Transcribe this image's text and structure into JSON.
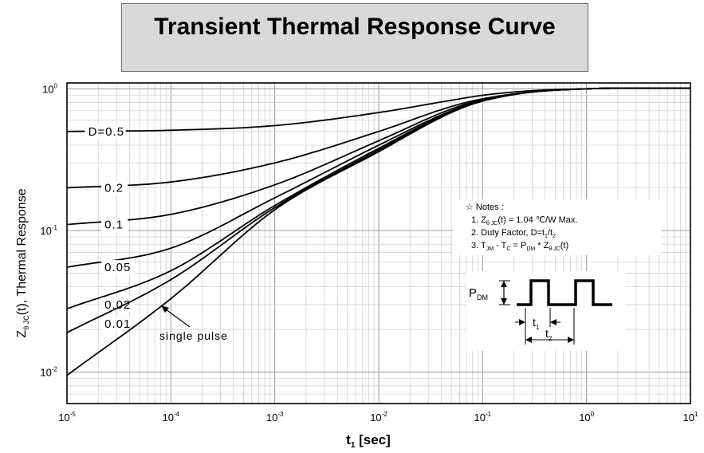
{
  "chart_data": {
    "type": "line",
    "title": "Transient Thermal Response Curve",
    "xlabel": "t [sec]",
    "xlabel_parts": {
      "main": "t",
      "sub": "1",
      "rest": " [sec]"
    },
    "ylabel": "Z θJC(t), Thermal Response",
    "ylabel_parts": {
      "main": "Z",
      "sub": "θ JC",
      "rest": "(t), Thermal Response"
    },
    "x_scale": "log",
    "y_scale": "log",
    "xlim": [
      1e-05,
      10
    ],
    "ylim": [
      0.006,
      1.1
    ],
    "grid": true,
    "x_ticks": [
      {
        "value": 1e-05,
        "base": "10",
        "exp": "-5"
      },
      {
        "value": 0.0001,
        "base": "10",
        "exp": "-4"
      },
      {
        "value": 0.001,
        "base": "10",
        "exp": "-3"
      },
      {
        "value": 0.01,
        "base": "10",
        "exp": "-2"
      },
      {
        "value": 0.1,
        "base": "10",
        "exp": "-1"
      },
      {
        "value": 1,
        "base": "10",
        "exp": "0"
      },
      {
        "value": 10,
        "base": "10",
        "exp": "1"
      }
    ],
    "y_ticks": [
      {
        "value": 0.01,
        "base": "10",
        "exp": "-2"
      },
      {
        "value": 0.1,
        "base": "10",
        "exp": "-1"
      },
      {
        "value": 1,
        "base": "10",
        "exp": "0"
      }
    ],
    "series": [
      {
        "name": "D=0.5",
        "label_x": 1.6e-05,
        "label_y": 0.5,
        "x": [
          1e-05,
          0.0001,
          0.001,
          0.01,
          0.05,
          0.1,
          0.3,
          1,
          2,
          10
        ],
        "y": [
          0.5,
          0.51,
          0.55,
          0.68,
          0.83,
          0.9,
          0.97,
          1.0,
          1.01,
          1.01
        ]
      },
      {
        "name": "0.2",
        "label_x": 2.3e-05,
        "label_y": 0.2,
        "x": [
          1e-05,
          0.0001,
          0.001,
          0.01,
          0.05,
          0.1,
          0.3,
          1,
          2,
          10
        ],
        "y": [
          0.2,
          0.22,
          0.3,
          0.5,
          0.75,
          0.85,
          0.95,
          1.0,
          1.01,
          1.01
        ]
      },
      {
        "name": "0.1",
        "label_x": 2.3e-05,
        "label_y": 0.11,
        "x": [
          1e-05,
          0.0001,
          0.001,
          0.01,
          0.05,
          0.1,
          0.3,
          1,
          2,
          10
        ],
        "y": [
          0.11,
          0.13,
          0.21,
          0.43,
          0.72,
          0.84,
          0.95,
          1.0,
          1.01,
          1.01
        ]
      },
      {
        "name": "0.05",
        "label_x": 2.3e-05,
        "label_y": 0.055,
        "x": [
          1e-05,
          0.0001,
          0.001,
          0.01,
          0.05,
          0.1,
          0.3,
          1,
          2,
          10
        ],
        "y": [
          0.055,
          0.075,
          0.17,
          0.4,
          0.7,
          0.83,
          0.95,
          1.0,
          1.01,
          1.01
        ]
      },
      {
        "name": "0.02",
        "label_x": 2.3e-05,
        "label_y": 0.03,
        "x": [
          1e-05,
          0.0001,
          0.001,
          0.01,
          0.05,
          0.1,
          0.3,
          1,
          2,
          10
        ],
        "y": [
          0.028,
          0.052,
          0.15,
          0.38,
          0.69,
          0.82,
          0.95,
          1.0,
          1.01,
          1.01
        ]
      },
      {
        "name": "0.01",
        "label_x": 2.3e-05,
        "label_y": 0.022,
        "x": [
          1e-05,
          0.0001,
          0.001,
          0.01,
          0.05,
          0.1,
          0.3,
          1,
          2,
          10
        ],
        "y": [
          0.019,
          0.045,
          0.145,
          0.37,
          0.69,
          0.82,
          0.95,
          1.0,
          1.01,
          1.01
        ]
      },
      {
        "name": "single pulse",
        "label_x": 0.0003,
        "label_y": 0.014,
        "x": [
          1e-05,
          0.0001,
          0.001,
          0.01,
          0.05,
          0.1,
          0.3,
          1,
          2,
          10
        ],
        "y": [
          0.0095,
          0.033,
          0.14,
          0.36,
          0.68,
          0.82,
          0.95,
          1.0,
          1.01,
          1.01
        ]
      }
    ],
    "notes": {
      "header": "☆ Notes :",
      "line1": {
        "pre": "1. Z",
        "sub": "θ JC",
        "post": "(t) = 1.04 ℃/W Max."
      },
      "line2": {
        "pre": "2. Duty Factor, D=t",
        "sub1": "1",
        "mid": "/t",
        "sub2": "2"
      },
      "line3": {
        "pre": "3. T",
        "sub1": "JM",
        "mid1": " - T",
        "sub2": "C",
        "mid2": " = P",
        "sub3": "DM",
        "mid3": " * Z",
        "sub4": "θ JC",
        "post": "(t)"
      }
    },
    "waveform": {
      "p_label": "P",
      "p_sub": "DM",
      "t1_label": "t",
      "t1_sub": "1",
      "t2_label": "t",
      "t2_sub": "2"
    }
  }
}
